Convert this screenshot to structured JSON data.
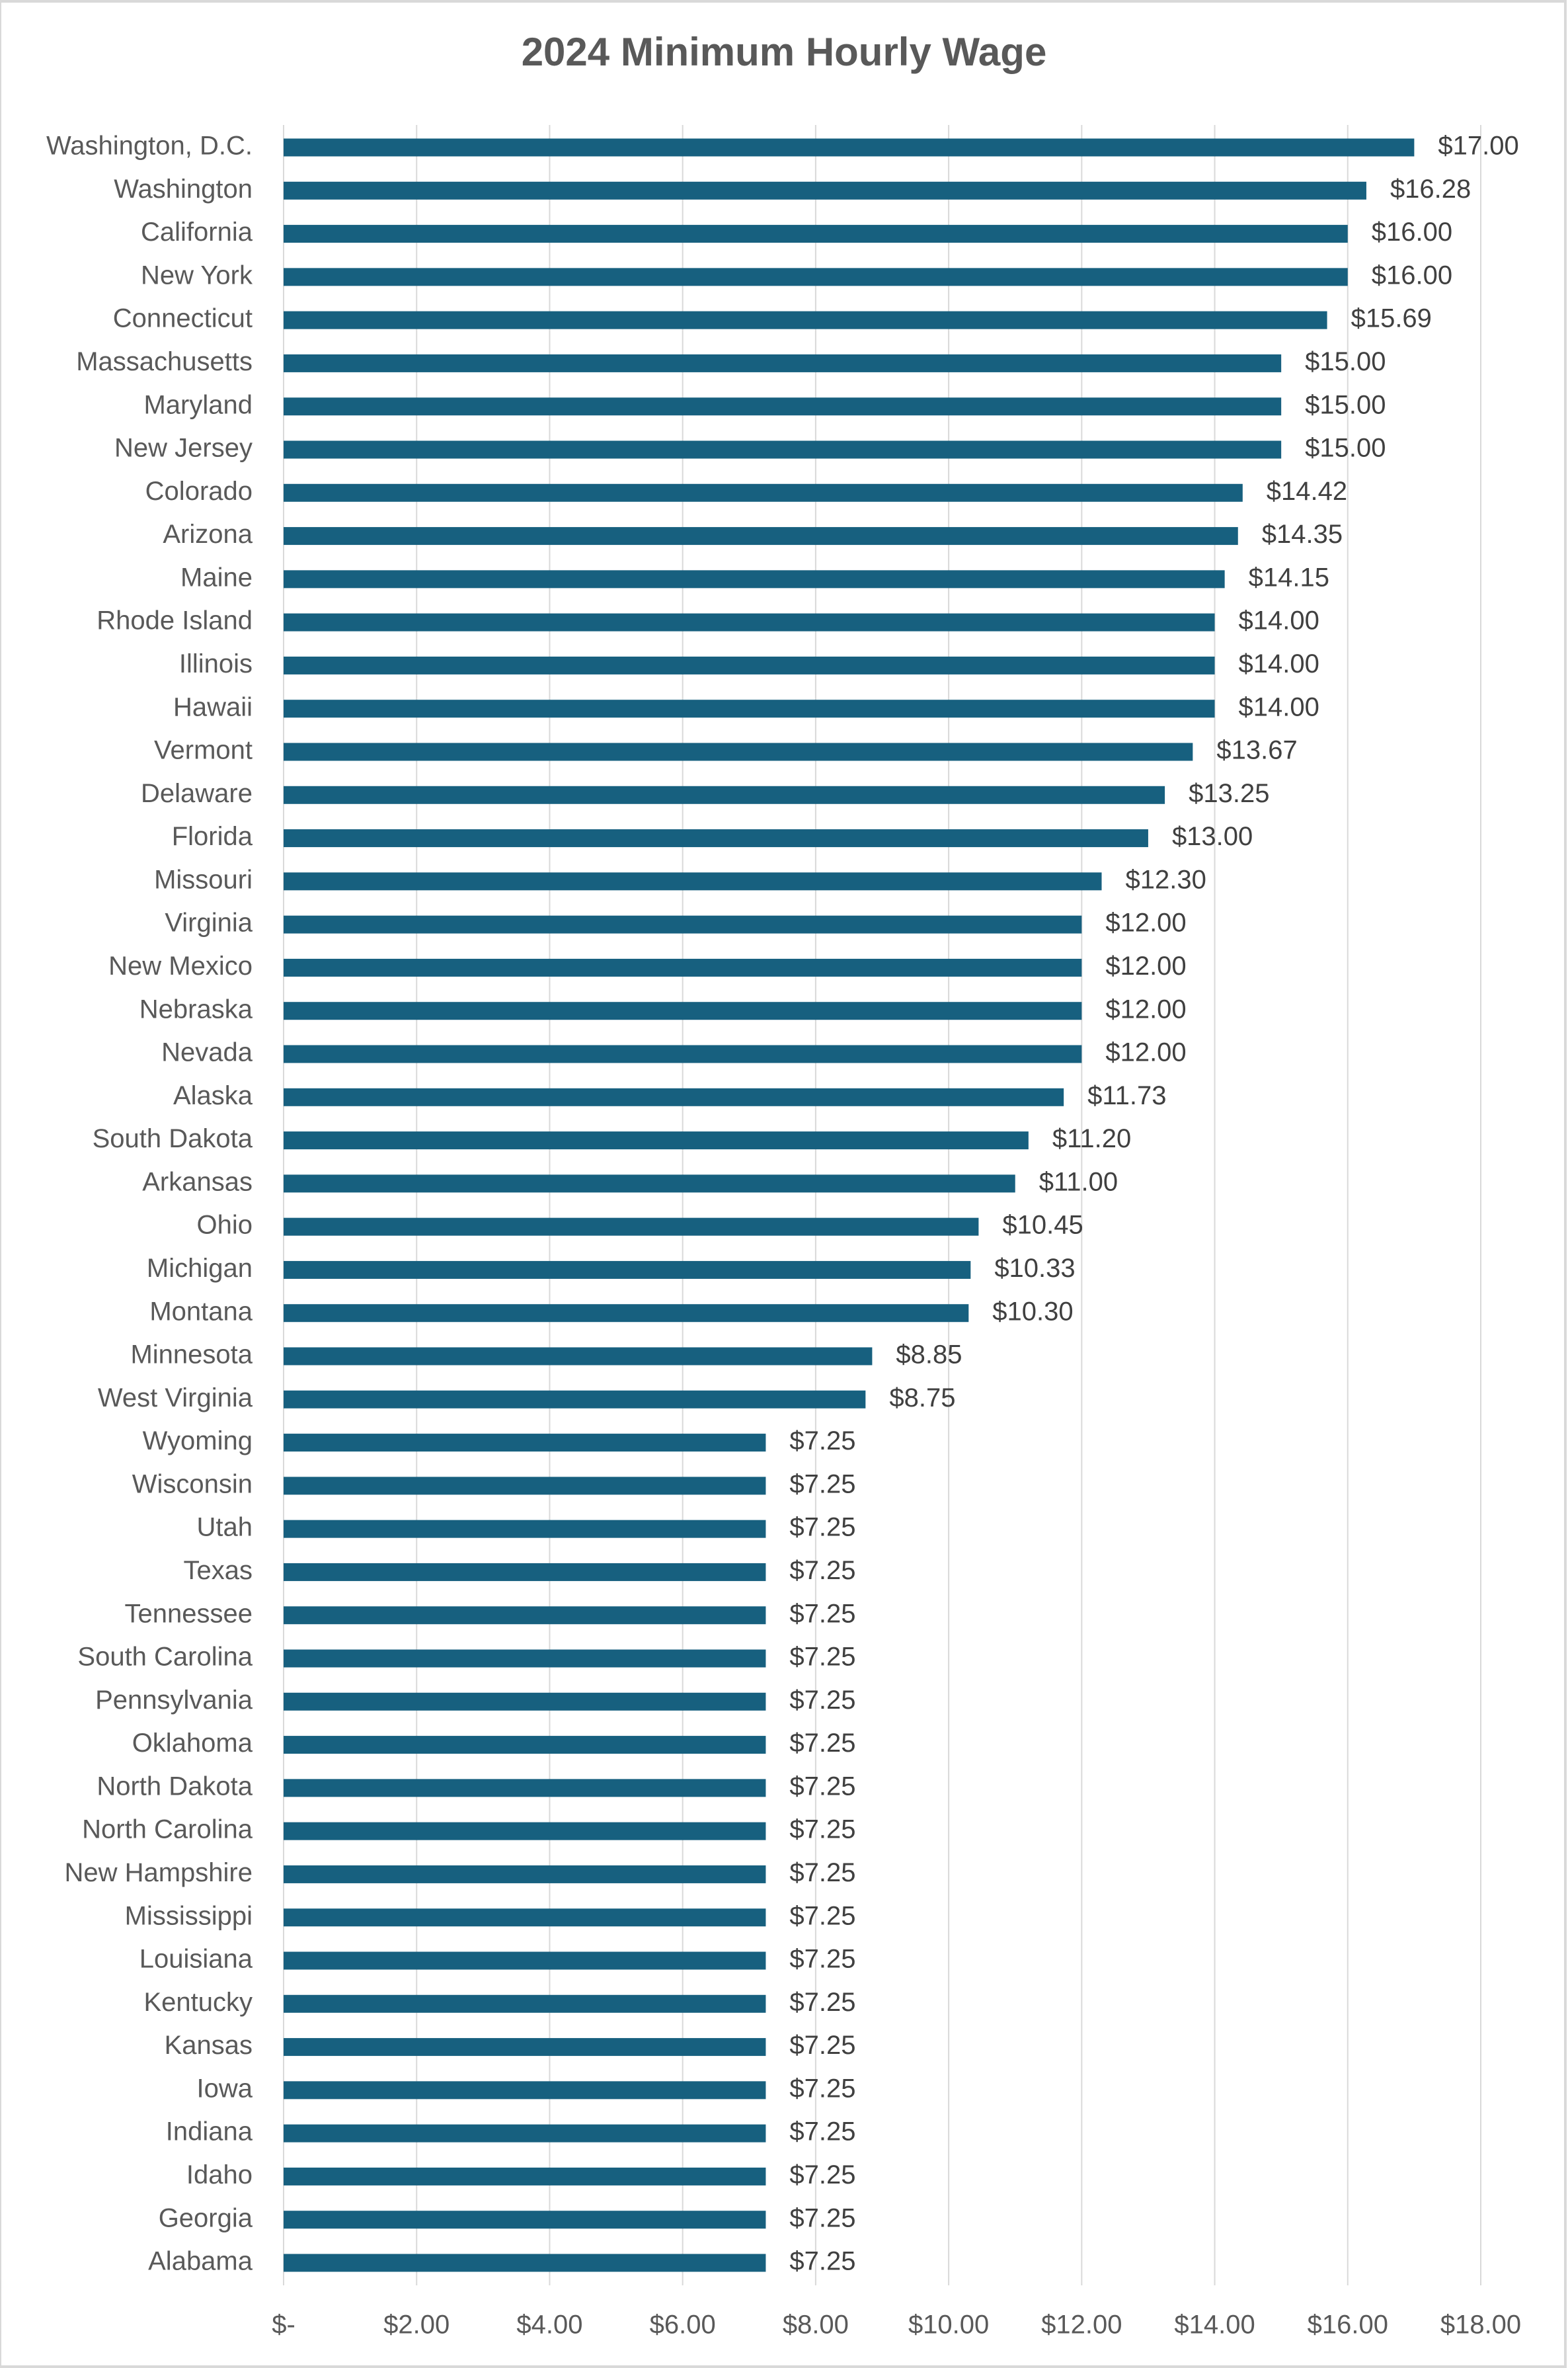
{
  "chart_data": {
    "type": "bar",
    "orientation": "horizontal",
    "title": "2024 Minimum Hourly Wage",
    "xlabel": "",
    "ylabel": "",
    "xlim": [
      0,
      18
    ],
    "grid": true,
    "legend": "none",
    "bar_color": "#17607f",
    "x_ticks": [
      "$-",
      "$2.00",
      "$4.00",
      "$6.00",
      "$8.00",
      "$10.00",
      "$12.00",
      "$14.00",
      "$16.00",
      "$18.00"
    ],
    "categories": [
      "Washington, D.C.",
      "Washington",
      "California",
      "New York",
      "Connecticut",
      "Massachusetts",
      "Maryland",
      "New Jersey",
      "Colorado",
      "Arizona",
      "Maine",
      "Rhode Island",
      "Illinois",
      "Hawaii",
      "Vermont",
      "Delaware",
      "Florida",
      "Missouri",
      "Virginia",
      "New Mexico",
      "Nebraska",
      "Nevada",
      "Alaska",
      "South Dakota",
      "Arkansas",
      "Ohio",
      "Michigan",
      "Montana",
      "Minnesota",
      "West Virginia",
      "Wyoming",
      "Wisconsin",
      "Utah",
      "Texas",
      "Tennessee",
      "South Carolina",
      "Pennsylvania",
      "Oklahoma",
      "North Dakota",
      "North Carolina",
      "New Hampshire",
      "Mississippi",
      "Louisiana",
      "Kentucky",
      "Kansas",
      "Iowa",
      "Indiana",
      "Idaho",
      "Georgia",
      "Alabama"
    ],
    "values": [
      17.0,
      16.28,
      16.0,
      16.0,
      15.69,
      15.0,
      15.0,
      15.0,
      14.42,
      14.35,
      14.15,
      14.0,
      14.0,
      14.0,
      13.67,
      13.25,
      13.0,
      12.3,
      12.0,
      12.0,
      12.0,
      12.0,
      11.73,
      11.2,
      11.0,
      10.45,
      10.33,
      10.3,
      8.85,
      8.75,
      7.25,
      7.25,
      7.25,
      7.25,
      7.25,
      7.25,
      7.25,
      7.25,
      7.25,
      7.25,
      7.25,
      7.25,
      7.25,
      7.25,
      7.25,
      7.25,
      7.25,
      7.25,
      7.25,
      7.25
    ],
    "data_labels": [
      "$17.00",
      "$16.28",
      "$16.00",
      "$16.00",
      "$15.69",
      "$15.00",
      "$15.00",
      "$15.00",
      "$14.42",
      "$14.35",
      "$14.15",
      "$14.00",
      "$14.00",
      "$14.00",
      "$13.67",
      "$13.25",
      "$13.00",
      "$12.30",
      "$12.00",
      "$12.00",
      "$12.00",
      "$12.00",
      "$11.73",
      "$11.20",
      "$11.00",
      "$10.45",
      "$10.33",
      "$10.30",
      "$8.85",
      "$8.75",
      "$7.25",
      "$7.25",
      "$7.25",
      "$7.25",
      "$7.25",
      "$7.25",
      "$7.25",
      "$7.25",
      "$7.25",
      "$7.25",
      "$7.25",
      "$7.25",
      "$7.25",
      "$7.25",
      "$7.25",
      "$7.25",
      "$7.25",
      "$7.25",
      "$7.25",
      "$7.25"
    ]
  }
}
